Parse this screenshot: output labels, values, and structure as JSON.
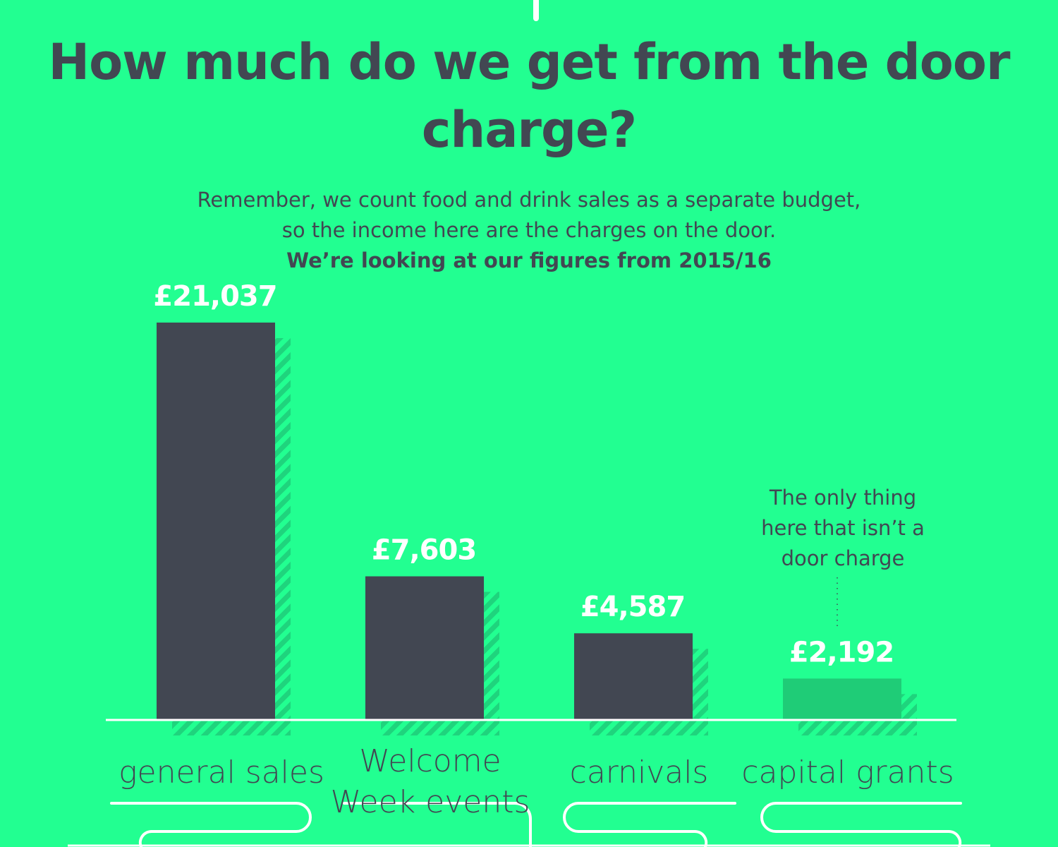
{
  "title": "How much do we get from the door charge?",
  "subtitle": {
    "line1": "Remember, we count food and drink sales as a separate budget,",
    "line2": "so the income here are the charges on the door.",
    "line3": "We’re looking at our figures from 2015/16"
  },
  "annotation": {
    "line1": "The only thing",
    "line2": "here that isn’t a",
    "line3": "door charge"
  },
  "chart_data": {
    "type": "bar",
    "categories": [
      "general sales",
      "Welcome Week events",
      "carnivals",
      "capital grants"
    ],
    "category_lines": [
      [
        "general sales"
      ],
      [
        "Welcome",
        "Week events"
      ],
      [
        "carnivals"
      ],
      [
        "capital grants"
      ]
    ],
    "values": [
      21037,
      7603,
      4587,
      2192
    ],
    "value_labels": [
      "£21,037",
      "£7,603",
      "£4,587",
      "£2,192"
    ],
    "highlight": [
      false,
      false,
      false,
      true
    ],
    "title": "How much do we get from the door charge?",
    "xlabel": "",
    "ylabel": "",
    "ylim": [
      0,
      21037
    ],
    "grid": false
  },
  "colors": {
    "background": "#22ff91",
    "bar": "#424752",
    "bar_highlight": "#1fcc77",
    "shadow_stripe": "#1fd47d",
    "text_dark": "#424752",
    "label_white": "#ffffff",
    "baseline": "#ffffff"
  }
}
